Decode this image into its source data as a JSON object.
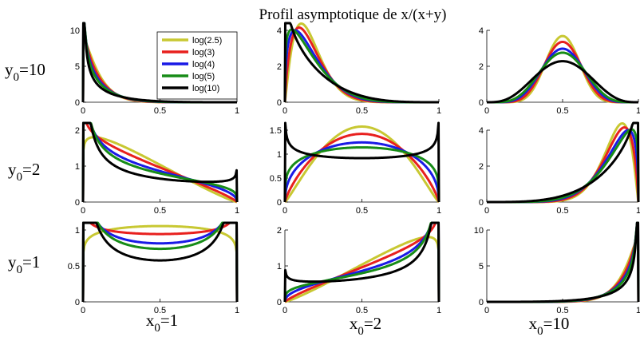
{
  "title": "Profil asymptotique de x/(x+y)",
  "legend": {
    "placement": "inside top-right of top-left panel",
    "entries": [
      {
        "label": "log(2.5)",
        "color": "#c8c832"
      },
      {
        "label": "log(3)",
        "color": "#e8201e"
      },
      {
        "label": "log(4)",
        "color": "#1a1ae6"
      },
      {
        "label": "log(5)",
        "color": "#178c17"
      },
      {
        "label": "log(10)",
        "color": "#000000"
      }
    ]
  },
  "row_labels": [
    {
      "base": "y",
      "sub": "0",
      "rest": "=10"
    },
    {
      "base": "y",
      "sub": "0",
      "rest": "=2"
    },
    {
      "base": "y",
      "sub": "0",
      "rest": "=1"
    }
  ],
  "col_labels": [
    {
      "base": "x",
      "sub": "0",
      "rest": "=1"
    },
    {
      "base": "x",
      "sub": "0",
      "rest": "=2"
    },
    {
      "base": "x",
      "sub": "0",
      "rest": "=10"
    }
  ],
  "chart_data": [
    {
      "type": "line",
      "row": 0,
      "col": 0,
      "x0": 1,
      "y0": 10,
      "xlim": [
        0,
        1
      ],
      "ylim": [
        0,
        10
      ],
      "xticks": [
        "0",
        "0.5",
        "1"
      ],
      "yticks": [
        "0",
        "5",
        "10"
      ],
      "grid": false
    },
    {
      "type": "line",
      "row": 0,
      "col": 1,
      "x0": 2,
      "y0": 10,
      "xlim": [
        0,
        1
      ],
      "ylim": [
        0,
        4
      ],
      "xticks": [
        "0",
        "0.5",
        "1"
      ],
      "yticks": [
        "0",
        "2",
        "4"
      ],
      "grid": false
    },
    {
      "type": "line",
      "row": 0,
      "col": 2,
      "x0": 10,
      "y0": 10,
      "xlim": [
        0,
        1
      ],
      "ylim": [
        0,
        4
      ],
      "xticks": [
        "0",
        "0.5",
        "1"
      ],
      "yticks": [
        "0",
        "2",
        "4"
      ],
      "grid": false
    },
    {
      "type": "line",
      "row": 1,
      "col": 0,
      "x0": 1,
      "y0": 2,
      "xlim": [
        0,
        1
      ],
      "ylim": [
        0,
        2
      ],
      "xticks": [
        "0",
        "0.5",
        "1"
      ],
      "yticks": [
        "0",
        "1",
        "2"
      ],
      "grid": false
    },
    {
      "type": "line",
      "row": 1,
      "col": 1,
      "x0": 2,
      "y0": 2,
      "xlim": [
        0,
        1
      ],
      "ylim": [
        0,
        1.5
      ],
      "xticks": [
        "0",
        "0.5",
        "1"
      ],
      "yticks": [
        "0",
        "0.5",
        "1",
        "1.5"
      ],
      "grid": false
    },
    {
      "type": "line",
      "row": 1,
      "col": 2,
      "x0": 10,
      "y0": 2,
      "xlim": [
        0,
        1
      ],
      "ylim": [
        0,
        4
      ],
      "xticks": [
        "0",
        "0.5",
        "1"
      ],
      "yticks": [
        "0",
        "2",
        "4"
      ],
      "grid": false
    },
    {
      "type": "line",
      "row": 2,
      "col": 0,
      "x0": 1,
      "y0": 1,
      "xlim": [
        0,
        1
      ],
      "ylim": [
        0,
        1
      ],
      "xticks": [
        "0",
        "0.5",
        "1"
      ],
      "yticks": [
        "0",
        "0.5",
        "1"
      ],
      "grid": false
    },
    {
      "type": "line",
      "row": 2,
      "col": 1,
      "x0": 2,
      "y0": 1,
      "xlim": [
        0,
        1
      ],
      "ylim": [
        0,
        2
      ],
      "xticks": [
        "0",
        "0.5",
        "1"
      ],
      "yticks": [
        "0",
        "1",
        "2"
      ],
      "grid": false
    },
    {
      "type": "line",
      "row": 2,
      "col": 2,
      "x0": 10,
      "y0": 1,
      "xlim": [
        0,
        1
      ],
      "ylim": [
        0,
        10
      ],
      "xticks": [
        "0",
        "0.5",
        "1"
      ],
      "yticks": [
        "0",
        "5",
        "10"
      ],
      "grid": false
    }
  ]
}
